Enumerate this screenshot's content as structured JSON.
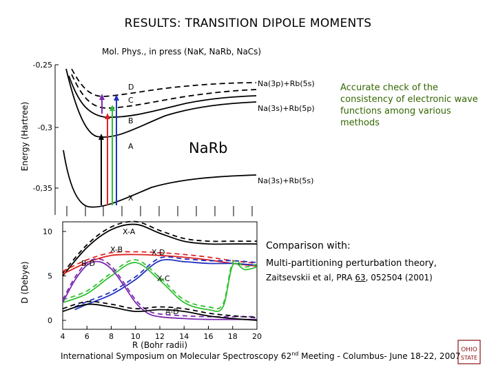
{
  "title": "RESULTS: TRANSITION DIPOLE MOMENTS",
  "subtitle": "Mol. Phys., in press (NaK, NaRb, NaCs)",
  "note": "Accurate check of the consistency of electronic wave functions among various methods",
  "molecule_label": "NaRb",
  "comparison": {
    "heading": "Comparison with:",
    "method": "Multi-partitioning perturbation theory,",
    "reference_pre": "Zaitsevskii et al, PRA ",
    "reference_vol": "63",
    "reference_post": ", 052504 (2001)"
  },
  "footer": {
    "pre": "International Symposium on Molecular Spectroscopy 62",
    "sup": "nd",
    "post": " Meeting - Columbus- June 18-22, 2007"
  },
  "logo_text": "OHIO STATE",
  "colors": {
    "note": "#336600",
    "red": "#e02020",
    "blue": "#2030c0",
    "green": "#30c030",
    "purple": "#7a2ab0"
  },
  "chart_data": [
    {
      "type": "line",
      "title": "",
      "xlabel": "",
      "ylabel": "Energy (Hartree)",
      "ylim": [
        -0.36,
        -0.25
      ],
      "y_ticks": [
        "-0,25",
        "-0,3",
        "-0,35"
      ],
      "state_labels": [
        "D",
        "C",
        "B",
        "A",
        "X"
      ],
      "asymptote_labels": [
        "Na(3p)+Rb(5s)",
        "Na(3s)+Rb(5p)",
        "Na(3s)+Rb(5s)"
      ],
      "transitions": [
        "X-A",
        "X-B",
        "X-C",
        "X-D"
      ]
    },
    {
      "type": "line",
      "title": "",
      "xlabel": "R (Bohr radii)",
      "ylabel": "D (Debye)",
      "xlim": [
        4,
        20
      ],
      "ylim": [
        0,
        10
      ],
      "x_ticks": [
        "4",
        "6",
        "8",
        "10",
        "12",
        "14",
        "16",
        "18",
        "20"
      ],
      "y_ticks": [
        "0",
        "5",
        "10"
      ],
      "series": [
        {
          "name": "X-A",
          "color": "#000000",
          "x": [
            4,
            6,
            8,
            10,
            12,
            14,
            16,
            18,
            20
          ],
          "y": [
            5.0,
            8.2,
            10.2,
            10.8,
            9.8,
            8.9,
            8.6,
            8.6,
            8.6
          ]
        },
        {
          "name": "X-B",
          "color": "#e02020",
          "x": [
            4,
            6,
            8,
            10,
            12,
            14,
            16,
            18,
            20
          ],
          "y": [
            5.2,
            6.5,
            7.3,
            7.4,
            7.3,
            7.1,
            6.8,
            6.4,
            6.1
          ]
        },
        {
          "name": "X-D",
          "color": "#2030c0",
          "x": [
            5,
            6,
            8,
            10,
            12,
            14,
            16,
            18,
            20
          ],
          "y": [
            1.2,
            1.8,
            2.9,
            4.6,
            6.7,
            6.6,
            6.4,
            6.4,
            6.2
          ]
        },
        {
          "name": "X-C",
          "color": "#30c030",
          "x": [
            4,
            6,
            8,
            10,
            12,
            14,
            16,
            17.2,
            18,
            19,
            20
          ],
          "y": [
            2.0,
            3.0,
            5.0,
            6.5,
            4.5,
            2.0,
            1.2,
            1.5,
            6.2,
            5.7,
            6.0
          ]
        },
        {
          "name": "B-D",
          "color": "#7a2ab0",
          "x": [
            4,
            5,
            6,
            7,
            8,
            9,
            10,
            11,
            12,
            14,
            16,
            18,
            20
          ],
          "y": [
            2.0,
            4.5,
            6.2,
            6.6,
            5.8,
            4.0,
            2.0,
            0.8,
            0.4,
            0.2,
            0.1,
            0.1,
            0.1
          ]
        },
        {
          "name": "A-D",
          "color": "#000000",
          "x": [
            4,
            6,
            8,
            10,
            12,
            14,
            16,
            18,
            20
          ],
          "y": [
            1.0,
            1.8,
            1.5,
            1.0,
            1.2,
            1.0,
            0.5,
            0.2,
            0.0
          ]
        }
      ]
    }
  ]
}
